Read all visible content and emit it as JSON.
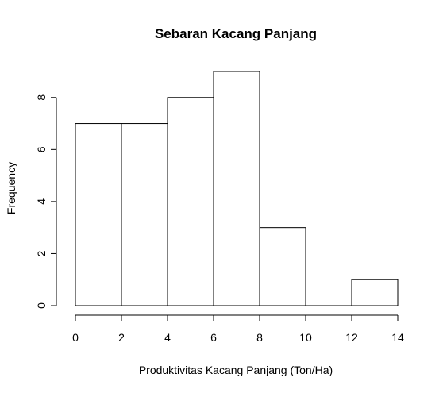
{
  "chart_data": {
    "type": "bar",
    "title": "Sebaran Kacang Panjang",
    "xlabel": "Produktivitas Kacang Panjang (Ton/Ha)",
    "ylabel": "Frequency",
    "bins": [
      {
        "x0": 0,
        "x1": 2,
        "count": 7
      },
      {
        "x0": 2,
        "x1": 4,
        "count": 7
      },
      {
        "x0": 4,
        "x1": 6,
        "count": 8
      },
      {
        "x0": 6,
        "x1": 8,
        "count": 9
      },
      {
        "x0": 8,
        "x1": 10,
        "count": 3
      },
      {
        "x0": 10,
        "x1": 12,
        "count": 0
      },
      {
        "x0": 12,
        "x1": 14,
        "count": 1
      }
    ],
    "xlim": [
      0,
      14
    ],
    "ylim": [
      0,
      9
    ],
    "x_ticks": [
      0,
      2,
      4,
      6,
      8,
      10,
      12,
      14
    ],
    "x_tick_labels": [
      "0",
      "2",
      "4",
      "6",
      "8",
      "10",
      "12",
      "14"
    ],
    "y_ticks": [
      0,
      2,
      4,
      6,
      8
    ],
    "y_tick_labels": [
      "0",
      "2",
      "4",
      "6",
      "8"
    ],
    "grid": false,
    "bar_fill": "#ffffff",
    "bar_stroke": "#000000"
  }
}
